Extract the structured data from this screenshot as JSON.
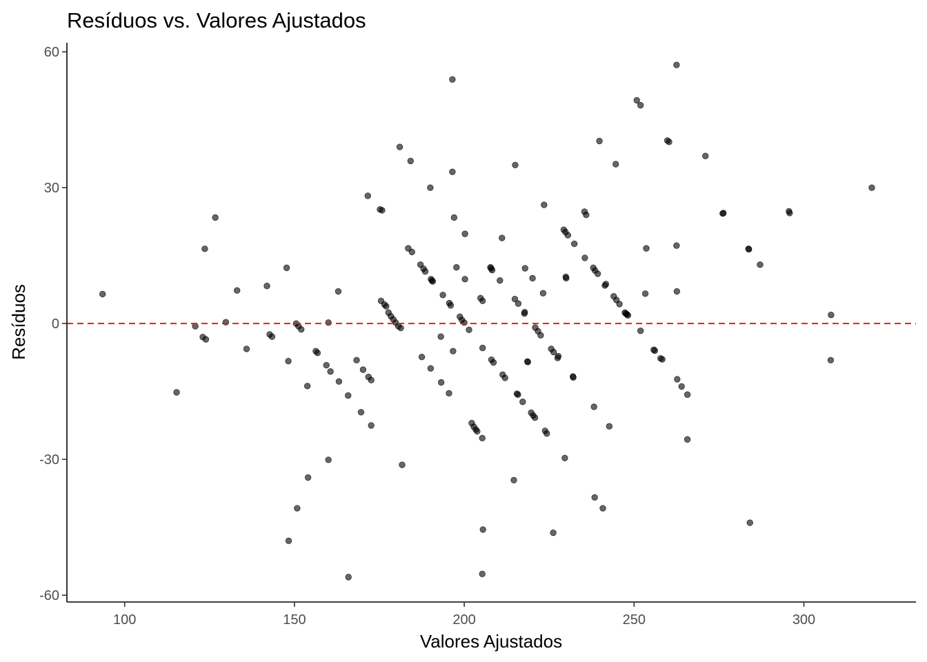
{
  "chart_data": {
    "type": "scatter",
    "title": "Resíduos vs. Valores Ajustados",
    "xlabel": "Valores Ajustados",
    "ylabel": "Resíduos",
    "xlim": [
      83,
      333
    ],
    "ylim": [
      -61.5,
      62
    ],
    "x_ticks": [
      100,
      150,
      200,
      250,
      300
    ],
    "y_ticks": [
      -60,
      -30,
      0,
      30,
      60
    ],
    "x_tick_labels": [
      "100",
      "150",
      "200",
      "250",
      "300"
    ],
    "y_tick_labels": [
      "-60",
      "-30",
      "0",
      "30",
      "60"
    ],
    "grid": false,
    "reference_line": {
      "y": 0,
      "color": "#e41a1c",
      "style": "dashed"
    },
    "point_color": "#000000",
    "point_opacity": 0.6,
    "points": [
      [
        93.5,
        6.5
      ],
      [
        115.3,
        -15.2
      ],
      [
        120.8,
        -0.6
      ],
      [
        123.0,
        -3.0
      ],
      [
        123.6,
        16.5
      ],
      [
        123.9,
        -3.5
      ],
      [
        126.7,
        23.4
      ],
      [
        129.8,
        0.3
      ],
      [
        133.1,
        7.3
      ],
      [
        135.9,
        -5.6
      ],
      [
        141.9,
        8.3
      ],
      [
        142.7,
        -2.4
      ],
      [
        143.4,
        -2.9
      ],
      [
        147.7,
        12.3
      ],
      [
        148.2,
        -8.3
      ],
      [
        148.3,
        -48.0
      ],
      [
        150.5,
        0.0
      ],
      [
        150.8,
        -40.8
      ],
      [
        151.2,
        -0.6
      ],
      [
        152.0,
        -1.3
      ],
      [
        153.8,
        -13.8
      ],
      [
        154.0,
        -34.0
      ],
      [
        156.3,
        -6.1
      ],
      [
        156.8,
        -6.5
      ],
      [
        159.4,
        -9.2
      ],
      [
        160.0,
        0.2
      ],
      [
        160.0,
        -30.1
      ],
      [
        160.6,
        -10.6
      ],
      [
        162.9,
        7.1
      ],
      [
        163.1,
        -12.8
      ],
      [
        165.8,
        -15.9
      ],
      [
        165.9,
        -56.0
      ],
      [
        168.3,
        -8.1
      ],
      [
        169.6,
        -19.6
      ],
      [
        170.2,
        -10.2
      ],
      [
        171.6,
        28.2
      ],
      [
        171.8,
        -11.8
      ],
      [
        172.6,
        -12.5
      ],
      [
        172.6,
        -22.5
      ],
      [
        175.2,
        25.2
      ],
      [
        175.5,
        5.0
      ],
      [
        175.8,
        25.0
      ],
      [
        176.5,
        4.2
      ],
      [
        177.0,
        3.8
      ],
      [
        177.7,
        2.4
      ],
      [
        178.4,
        1.6
      ],
      [
        179.1,
        0.9
      ],
      [
        179.8,
        0.2
      ],
      [
        180.6,
        -0.6
      ],
      [
        181.0,
        39.0
      ],
      [
        181.3,
        -1.0
      ],
      [
        181.7,
        -31.2
      ],
      [
        183.5,
        16.6
      ],
      [
        184.2,
        35.9
      ],
      [
        184.6,
        15.8
      ],
      [
        187.1,
        13.0
      ],
      [
        187.5,
        -7.4
      ],
      [
        188.0,
        12.1
      ],
      [
        188.5,
        11.5
      ],
      [
        190.0,
        30.0
      ],
      [
        190.1,
        -9.9
      ],
      [
        190.2,
        9.8
      ],
      [
        190.5,
        9.5
      ],
      [
        190.7,
        9.3
      ],
      [
        193.1,
        -2.9
      ],
      [
        193.2,
        -13.0
      ],
      [
        193.7,
        6.3
      ],
      [
        195.5,
        -15.4
      ],
      [
        195.6,
        4.5
      ],
      [
        196.0,
        4.0
      ],
      [
        196.5,
        33.5
      ],
      [
        196.5,
        53.9
      ],
      [
        196.7,
        -6.1
      ],
      [
        197.0,
        23.4
      ],
      [
        197.7,
        12.4
      ],
      [
        198.7,
        1.5
      ],
      [
        199.3,
        0.8
      ],
      [
        200.0,
        0.2
      ],
      [
        200.2,
        19.8
      ],
      [
        200.2,
        9.8
      ],
      [
        201.4,
        -1.4
      ],
      [
        202.2,
        -22.0
      ],
      [
        202.8,
        -22.8
      ],
      [
        203.4,
        -23.4
      ],
      [
        203.8,
        -23.8
      ],
      [
        204.8,
        5.6
      ],
      [
        205.4,
        5.0
      ],
      [
        205.4,
        -5.4
      ],
      [
        205.3,
        -25.3
      ],
      [
        205.5,
        -45.5
      ],
      [
        205.3,
        -55.3
      ],
      [
        207.7,
        12.4
      ],
      [
        207.9,
        12.2
      ],
      [
        208.0,
        -8.0
      ],
      [
        208.2,
        11.8
      ],
      [
        208.6,
        -8.6
      ],
      [
        210.5,
        9.5
      ],
      [
        211.1,
        18.9
      ],
      [
        211.3,
        -11.3
      ],
      [
        212.0,
        -12.0
      ],
      [
        214.6,
        -34.6
      ],
      [
        214.9,
        5.4
      ],
      [
        215.0,
        35.0
      ],
      [
        215.5,
        -15.5
      ],
      [
        215.9,
        4.4
      ],
      [
        215.8,
        -15.7
      ],
      [
        217.2,
        -17.3
      ],
      [
        217.7,
        2.2
      ],
      [
        217.8,
        2.5
      ],
      [
        217.9,
        12.2
      ],
      [
        218.6,
        -8.4
      ],
      [
        218.7,
        -8.5
      ],
      [
        219.7,
        -19.7
      ],
      [
        220.1,
        10.0
      ],
      [
        220.3,
        -20.3
      ],
      [
        220.8,
        -20.8
      ],
      [
        220.9,
        -0.9
      ],
      [
        221.7,
        -1.7
      ],
      [
        222.5,
        -2.6
      ],
      [
        223.2,
        6.7
      ],
      [
        223.5,
        26.2
      ],
      [
        223.8,
        -23.7
      ],
      [
        224.3,
        -24.3
      ],
      [
        225.6,
        -5.6
      ],
      [
        226.3,
        -6.3
      ],
      [
        226.2,
        -46.2
      ],
      [
        227.5,
        -7.6
      ],
      [
        227.7,
        -7.2
      ],
      [
        229.3,
        20.7
      ],
      [
        229.6,
        -29.7
      ],
      [
        229.8,
        20.2
      ],
      [
        229.9,
        10.3
      ],
      [
        230.0,
        10.0
      ],
      [
        230.5,
        19.5
      ],
      [
        232.0,
        -11.7
      ],
      [
        232.1,
        -11.9
      ],
      [
        232.4,
        17.6
      ],
      [
        235.4,
        24.7
      ],
      [
        235.5,
        14.5
      ],
      [
        235.9,
        24.0
      ],
      [
        238.0,
        12.3
      ],
      [
        238.2,
        -18.4
      ],
      [
        238.5,
        11.7
      ],
      [
        238.4,
        -38.4
      ],
      [
        239.3,
        11.0
      ],
      [
        239.8,
        40.3
      ],
      [
        240.8,
        -40.8
      ],
      [
        241.4,
        8.4
      ],
      [
        241.7,
        8.7
      ],
      [
        242.7,
        -22.7
      ],
      [
        244.0,
        6.0
      ],
      [
        244.6,
        35.2
      ],
      [
        244.8,
        5.2
      ],
      [
        245.7,
        4.3
      ],
      [
        247.3,
        2.4
      ],
      [
        247.6,
        2.2
      ],
      [
        247.9,
        2.0
      ],
      [
        248.2,
        1.8
      ],
      [
        250.8,
        49.3
      ],
      [
        251.9,
        -1.6
      ],
      [
        251.9,
        48.2
      ],
      [
        253.3,
        6.6
      ],
      [
        253.6,
        16.6
      ],
      [
        255.8,
        -5.8
      ],
      [
        256.1,
        -6.0
      ],
      [
        257.8,
        -7.7
      ],
      [
        258.3,
        -7.9
      ],
      [
        259.8,
        40.4
      ],
      [
        260.3,
        40.1
      ],
      [
        262.5,
        57.1
      ],
      [
        262.5,
        17.2
      ],
      [
        262.6,
        7.1
      ],
      [
        262.7,
        -12.3
      ],
      [
        264.0,
        -13.9
      ],
      [
        265.7,
        -15.7
      ],
      [
        265.7,
        -25.6
      ],
      [
        271.0,
        37.0
      ],
      [
        276.1,
        24.3
      ],
      [
        276.3,
        24.4
      ],
      [
        283.7,
        16.5
      ],
      [
        283.8,
        16.4
      ],
      [
        284.1,
        -44.0
      ],
      [
        287.1,
        13.0
      ],
      [
        295.6,
        24.8
      ],
      [
        295.8,
        24.4
      ],
      [
        307.9,
        -8.1
      ],
      [
        308.0,
        1.9
      ],
      [
        320.0,
        30.0
      ]
    ]
  }
}
